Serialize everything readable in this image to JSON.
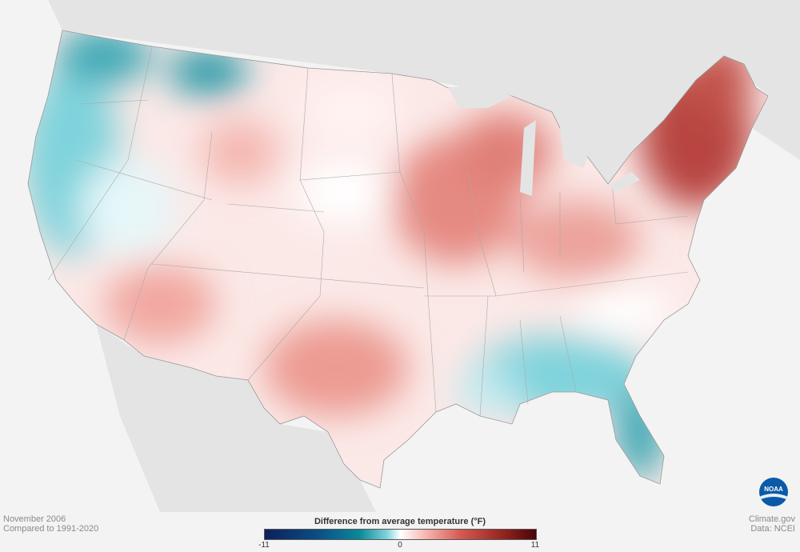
{
  "map": {
    "subject": "Difference from average temperature, contiguous United States",
    "icons": [
      "noaa-logo"
    ]
  },
  "caption": {
    "period": "November 2006",
    "baseline": "Compared to 1991-2020"
  },
  "credit": {
    "site": "Climate.gov",
    "data": "Data: NCEI"
  },
  "legend": {
    "title": "Difference from average temperature  (°F)",
    "min": "-11",
    "mid": "0",
    "max": "11",
    "colors": {
      "cold": "#0e1f5a",
      "cool": "#0a8a99",
      "neutral": "#ffffff",
      "warm": "#d55b52",
      "hot": "#4a0405"
    }
  },
  "logo": {
    "text": "NOAA"
  }
}
